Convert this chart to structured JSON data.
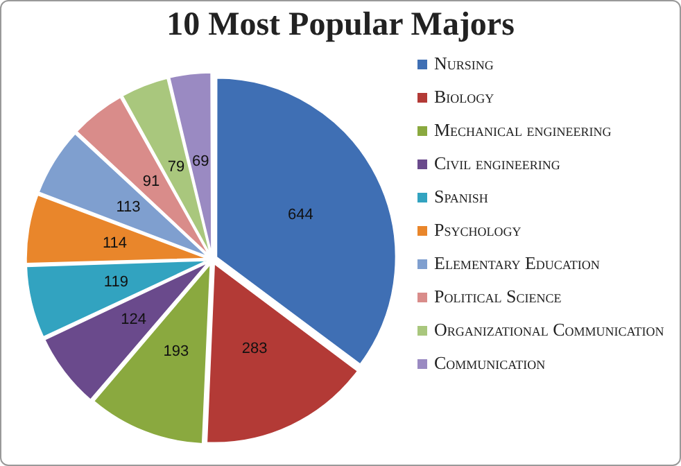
{
  "chart_data": {
    "type": "pie",
    "title": "10 Most Popular Majors",
    "categories": [
      "Nursing",
      "Biology",
      "Mechanical engineering",
      "Civil engineering",
      "Spanish",
      "Psychology",
      "Elementary Education",
      "Political Science",
      "Organizational Communication",
      "Communication"
    ],
    "values": [
      644,
      283,
      193,
      124,
      119,
      114,
      113,
      91,
      79,
      69
    ],
    "colors": [
      "#3f6fb4",
      "#b33a36",
      "#8aa93f",
      "#6a4a8c",
      "#32a3c0",
      "#e9862b",
      "#7f9fcf",
      "#d98c8a",
      "#a9c77d",
      "#9a8ac2"
    ],
    "data_labels": true,
    "legend": "right"
  }
}
